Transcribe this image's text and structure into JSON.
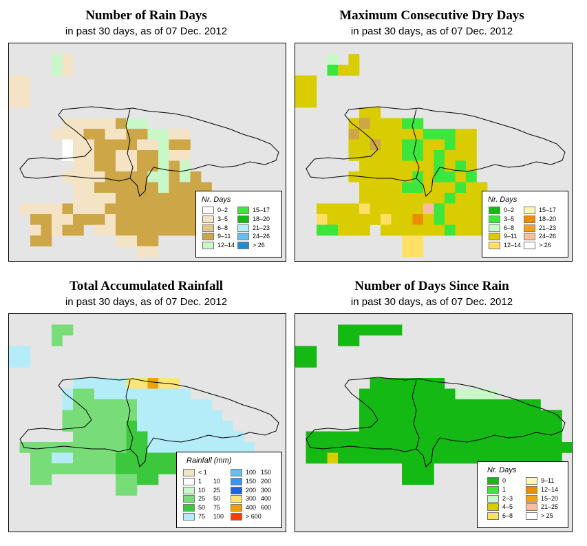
{
  "panels": [
    {
      "id": "rain-days",
      "title": "Number of Rain Days",
      "subtitle": "in past 30 days, as of  07 Dec. 2012",
      "legend": {
        "title": "Nr. Days",
        "items": [
          {
            "label": "0–2",
            "color": "#ffffff"
          },
          {
            "label": "3–5",
            "color": "#f5e3c6"
          },
          {
            "label": "6–8",
            "color": "#e3c590"
          },
          {
            "label": "9–11",
            "color": "#cda648"
          },
          {
            "label": "12–14",
            "color": "#c8f7c8"
          },
          {
            "label": "15–17",
            "color": "#3ce63c"
          },
          {
            "label": "18–20",
            "color": "#14b914"
          },
          {
            "label": "21–23",
            "color": "#b4ecf8"
          },
          {
            "label": "24–26",
            "color": "#64bef0"
          },
          {
            "label": "> 26",
            "color": "#1e8cd2"
          }
        ]
      }
    },
    {
      "id": "dry-days",
      "title": "Maximum Consecutive Dry Days",
      "subtitle": "in past 30 days, as of  07 Dec. 2012",
      "legend": {
        "title": "Nr. Days",
        "items": [
          {
            "label": "0–2",
            "color": "#14b914"
          },
          {
            "label": "3–5",
            "color": "#3ce63c"
          },
          {
            "label": "6–8",
            "color": "#c8f7c8"
          },
          {
            "label": "9–11",
            "color": "#d9cc00"
          },
          {
            "label": "12–14",
            "color": "#ffe066"
          },
          {
            "label": "15–17",
            "color": "#fff5b4"
          },
          {
            "label": "18–20",
            "color": "#ee8c00"
          },
          {
            "label": "21–23",
            "color": "#f2a020"
          },
          {
            "label": "24–26",
            "color": "#f8c09a"
          },
          {
            "label": "> 26",
            "color": "#ffffff"
          }
        ]
      }
    },
    {
      "id": "rainfall",
      "title": "Total Accumulated Rainfall",
      "subtitle": "in past 30 days, as of  07 Dec. 2012",
      "legend": {
        "title": "Rainfall (mm)",
        "items": [
          {
            "lo": "< 1",
            "hi": "",
            "color": "#f5e3c6"
          },
          {
            "lo": "1",
            "hi": "10",
            "color": "#ffffff"
          },
          {
            "lo": "10",
            "hi": "25",
            "color": "#c8f7c8"
          },
          {
            "lo": "25",
            "hi": "50",
            "color": "#78dc78"
          },
          {
            "lo": "50",
            "hi": "75",
            "color": "#3cc83c"
          },
          {
            "lo": "75",
            "hi": "100",
            "color": "#b4ecf8"
          },
          {
            "lo": "100",
            "hi": "150",
            "color": "#64bef0"
          },
          {
            "lo": "150",
            "hi": "200",
            "color": "#3c96f0"
          },
          {
            "lo": "200",
            "hi": "300",
            "color": "#1e64dc"
          },
          {
            "lo": "300",
            "hi": "400",
            "color": "#fae678"
          },
          {
            "lo": "400",
            "hi": "600",
            "color": "#f0a000"
          },
          {
            "lo": "> 600",
            "hi": "",
            "color": "#ff3c00"
          }
        ]
      }
    },
    {
      "id": "since-rain",
      "title": "Number of Days Since Rain",
      "subtitle": "in past 30 days, as of  07 Dec. 2012",
      "legend": {
        "title": "Nr. Days",
        "items": [
          {
            "label": "0",
            "color": "#14b914"
          },
          {
            "label": "1",
            "color": "#3ce63c"
          },
          {
            "label": "2–3",
            "color": "#c8f7c8"
          },
          {
            "label": "4–5",
            "color": "#d9cc00"
          },
          {
            "label": "6–8",
            "color": "#ffe066"
          },
          {
            "label": "9–11",
            "color": "#fff5b4"
          },
          {
            "label": "12–14",
            "color": "#ee8c00"
          },
          {
            "label": "15–20",
            "color": "#f2a020"
          },
          {
            "label": "21–25",
            "color": "#f8c09a"
          },
          {
            "label": "> 25",
            "color": "#ffffff"
          }
        ]
      }
    }
  ]
}
